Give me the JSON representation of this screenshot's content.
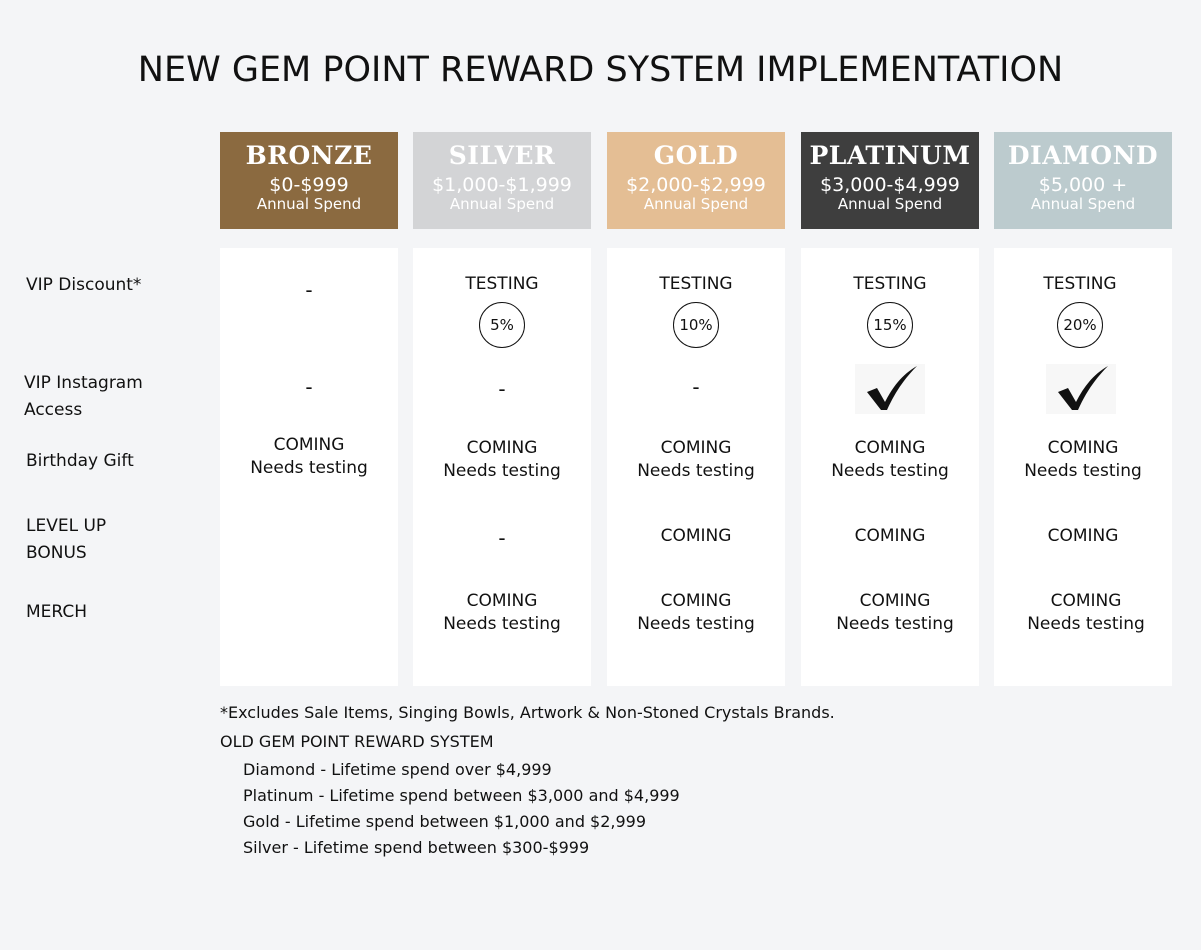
{
  "title": "NEW GEM POINT REWARD SYSTEM IMPLEMENTATION",
  "row_labels": {
    "vip_discount": "VIP Discount*",
    "vip_instagram_1": "VIP Instagram",
    "vip_instagram_2": "Access",
    "birthday_gift": "Birthday Gift",
    "level_up_1": "LEVEL UP",
    "level_up_2": "BONUS",
    "merch": "MERCH"
  },
  "tiers": [
    {
      "name": "BRONZE",
      "range": "$0-$999",
      "sub": "Annual Spend",
      "color": "#8b6a40",
      "text_color": "#ffffff",
      "vip_discount": {
        "dash": "-"
      },
      "vip_instagram": {
        "dash": "-"
      },
      "birthday_gift": {
        "line1": "COMING",
        "line2": "Needs testing"
      }
    },
    {
      "name": "SILVER",
      "range": "$1,000-$1,999",
      "sub": "Annual Spend",
      "color": "#d3d4d6",
      "text_color": "#ffffff",
      "vip_discount": {
        "label": "TESTING",
        "badge": "5%"
      },
      "vip_instagram": {
        "dash": "-"
      },
      "birthday_gift": {
        "line1": "COMING",
        "line2": "Needs testing"
      },
      "level_up": {
        "dash": "-"
      },
      "merch": {
        "line1": "COMING",
        "line2": "Needs testing"
      }
    },
    {
      "name": "GOLD",
      "range": "$2,000-$2,999",
      "sub": "Annual Spend",
      "color": "#e4be94",
      "text_color": "#ffffff",
      "vip_discount": {
        "label": "TESTING",
        "badge": "10%"
      },
      "vip_instagram": {
        "dash": "-"
      },
      "birthday_gift": {
        "line1": "COMING",
        "line2": "Needs testing"
      },
      "level_up": {
        "line1": "COMING"
      },
      "merch": {
        "line1": "COMING",
        "line2": "Needs testing"
      }
    },
    {
      "name": "PLATINUM",
      "range": "$3,000-$4,999",
      "sub": "Annual Spend",
      "color": "#3e3e3e",
      "text_color": "#ffffff",
      "vip_discount": {
        "label": "TESTING",
        "badge": "15%"
      },
      "vip_instagram": {
        "check": "checkmark-icon"
      },
      "birthday_gift": {
        "line1": "COMING",
        "line2": "Needs testing"
      },
      "level_up": {
        "line1": "COMING"
      },
      "merch": {
        "line1": "COMING",
        "line2": "Needs testing"
      }
    },
    {
      "name": "DIAMOND",
      "range": "$5,000 +",
      "sub": "Annual Spend",
      "color": "#bccbce",
      "text_color": "#ffffff",
      "vip_discount": {
        "label": "TESTING",
        "badge": "20%"
      },
      "vip_instagram": {
        "check": "checkmark-icon"
      },
      "birthday_gift": {
        "line1": "COMING",
        "line2": "Needs testing"
      },
      "level_up": {
        "line1": "COMING"
      },
      "merch": {
        "line1": "COMING",
        "line2": "Needs testing"
      }
    }
  ],
  "footnote": "*Excludes Sale Items, Singing Bowls, Artwork & Non-Stoned Crystals Brands.",
  "old_system": {
    "heading": "OLD GEM POINT REWARD SYSTEM",
    "items": [
      "Diamond - Lifetime spend over $4,999",
      "Platinum - Lifetime spend between $3,000 and $4,999",
      "Gold - Lifetime spend between $1,000 and $2,999",
      "Silver - Lifetime spend between $300-$999"
    ]
  }
}
